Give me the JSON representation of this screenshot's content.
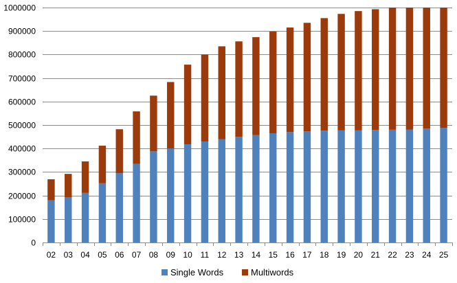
{
  "colors": {
    "single_words": "#4F81BD",
    "multiwords": "#9B3A0B",
    "gridline": "#8C8C8C",
    "axis": "#8C8C8C",
    "background": "#FFFFFF"
  },
  "chart_data": {
    "type": "bar",
    "stacked": true,
    "title": "",
    "xlabel": "",
    "ylabel": "",
    "ylim": [
      0,
      1000000
    ],
    "y_ticks": [
      "0",
      "100000",
      "200000",
      "300000",
      "400000",
      "500000",
      "600000",
      "700000",
      "800000",
      "900000",
      "1000000"
    ],
    "grid": "horizontal",
    "legend_position": "bottom",
    "categories": [
      "02",
      "03",
      "04",
      "05",
      "06",
      "07",
      "08",
      "09",
      "10",
      "11",
      "12",
      "13",
      "14",
      "15",
      "16",
      "17",
      "18",
      "19",
      "20",
      "21",
      "22",
      "23",
      "24",
      "25"
    ],
    "series": [
      {
        "name": "Single Words",
        "values": [
          180000,
          192000,
          211000,
          252000,
          295000,
          335000,
          388000,
          400000,
          418000,
          430000,
          440000,
          450000,
          457000,
          465000,
          470000,
          473000,
          476000,
          477000,
          477000,
          479000,
          480000,
          481000,
          485000,
          488000
        ]
      },
      {
        "name": "Multiwords",
        "values": [
          89000,
          100000,
          134000,
          160000,
          187000,
          223000,
          237000,
          283000,
          339000,
          370000,
          395000,
          406000,
          417000,
          433000,
          445000,
          462000,
          479000,
          496000,
          508000,
          514000,
          520000,
          519000,
          515000,
          512000
        ]
      }
    ]
  }
}
